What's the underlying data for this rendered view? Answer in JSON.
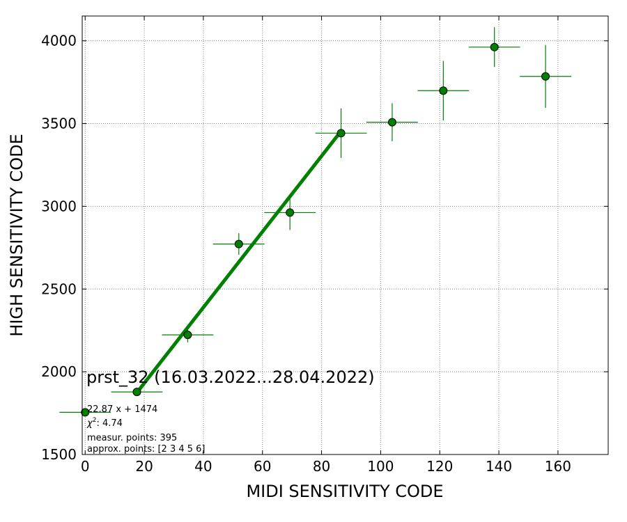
{
  "chart_data": {
    "type": "scatter",
    "title": "",
    "xlabel": "MIDI SENSITIVITY CODE",
    "ylabel": "HIGH SENSITIVITY CODE",
    "xlim": [
      -1,
      177
    ],
    "ylim": [
      1500,
      4150
    ],
    "xticks": [
      0,
      20,
      40,
      60,
      80,
      100,
      120,
      140,
      160
    ],
    "yticks": [
      1500,
      2000,
      2500,
      3000,
      3500,
      4000
    ],
    "grid": true,
    "series": [
      {
        "color": "#008000",
        "points": [
          {
            "x": 0,
            "y": 1755,
            "xerr": 8.7,
            "yerr": 0
          },
          {
            "x": 17.5,
            "y": 1878,
            "xerr": 8.7,
            "yerr": 0
          },
          {
            "x": 34.7,
            "y": 2223,
            "xerr": 8.7,
            "yerr": 45
          },
          {
            "x": 52,
            "y": 2772,
            "xerr": 8.7,
            "yerr": 65
          },
          {
            "x": 69.3,
            "y": 2962,
            "xerr": 8.7,
            "yerr": 105
          },
          {
            "x": 86.6,
            "y": 3442,
            "xerr": 8.7,
            "yerr": 150
          },
          {
            "x": 103.9,
            "y": 3508,
            "xerr": 8.7,
            "yerr": 115
          },
          {
            "x": 121.2,
            "y": 3699,
            "xerr": 8.7,
            "yerr": 180
          },
          {
            "x": 138.5,
            "y": 3962,
            "xerr": 8.7,
            "yerr": 120
          },
          {
            "x": 155.8,
            "y": 3785,
            "xerr": 8.7,
            "yerr": 190
          }
        ]
      }
    ],
    "fit_line": {
      "x_start": 17.5,
      "x_end": 86.6,
      "slope": 22.87,
      "intercept": 1474,
      "color": "#008000"
    },
    "annotations": {
      "period": "prst_32 (16.03.2022...28.04.2022)",
      "equation": "22.87 x + 1474",
      "chi2_symbol": "χ",
      "chi2_exp": "2",
      "chi2_value": ": 4.74",
      "measur_points": "measur. points: 395",
      "approx_points": "approx. points: [2 3 4 5 6]"
    }
  }
}
